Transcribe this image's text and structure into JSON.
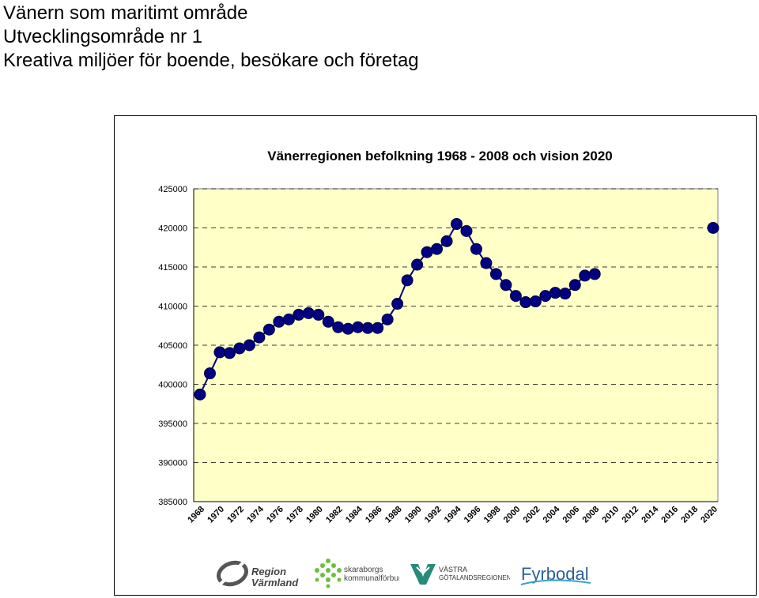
{
  "header": {
    "line1": "Vänern som maritimt område",
    "line2": "Utvecklingsområde nr 1",
    "line3": "Kreativa miljöer för boende, besökare och företag"
  },
  "chart_data": {
    "type": "line",
    "title": "Vänerregionen befolkning 1968 - 2008 och vision 2020",
    "xlabel": "",
    "ylabel": "",
    "ylim": [
      385000,
      425000
    ],
    "yticks": [
      "425000",
      "420000",
      "415000",
      "410000",
      "405000",
      "400000",
      "395000",
      "390000",
      "385000"
    ],
    "xticks": [
      "1968",
      "1970",
      "1972",
      "1974",
      "1976",
      "1978",
      "1980",
      "1982",
      "1984",
      "1986",
      "1988",
      "1990",
      "1992",
      "1994",
      "1996",
      "1998",
      "2000",
      "2002",
      "2004",
      "2006",
      "2008",
      "2010",
      "2012",
      "2014",
      "2016",
      "2018",
      "2020"
    ],
    "grid": "horizontal dashed",
    "plot_background": "#FFFFC8",
    "marker_color": "#000080",
    "series": [
      {
        "x": [
          1968,
          1969,
          1970,
          1971,
          1972,
          1973,
          1974,
          1975,
          1976,
          1977,
          1978,
          1979,
          1980,
          1981,
          1982,
          1983,
          1984,
          1985,
          1986,
          1987,
          1988,
          1989,
          1990,
          1991,
          1992,
          1993,
          1994,
          1995,
          1996,
          1997,
          1998,
          1999,
          2000,
          2001,
          2002,
          2003,
          2004,
          2005,
          2006,
          2007,
          2008
        ],
        "values": [
          398700,
          401400,
          404100,
          404000,
          404600,
          405000,
          406000,
          407000,
          408000,
          408300,
          408900,
          409100,
          408900,
          408000,
          407300,
          407100,
          407300,
          407200,
          407200,
          408300,
          410300,
          413300,
          415300,
          416900,
          417300,
          418300,
          420500,
          419600,
          417300,
          415500,
          414100,
          412700,
          411300,
          410500,
          410600,
          411300,
          411700,
          411600,
          412700,
          413900,
          414100
        ]
      },
      {
        "x": [
          2020
        ],
        "values": [
          420000
        ]
      }
    ]
  },
  "logos": {
    "region_varmland": "Region Värmland",
    "skaraborg": "skaraborgs kommunalförbund",
    "vastra": "VÄSTRA GÖTALANDSREGIONEN",
    "fyrbodal": "Fyrbodal"
  }
}
